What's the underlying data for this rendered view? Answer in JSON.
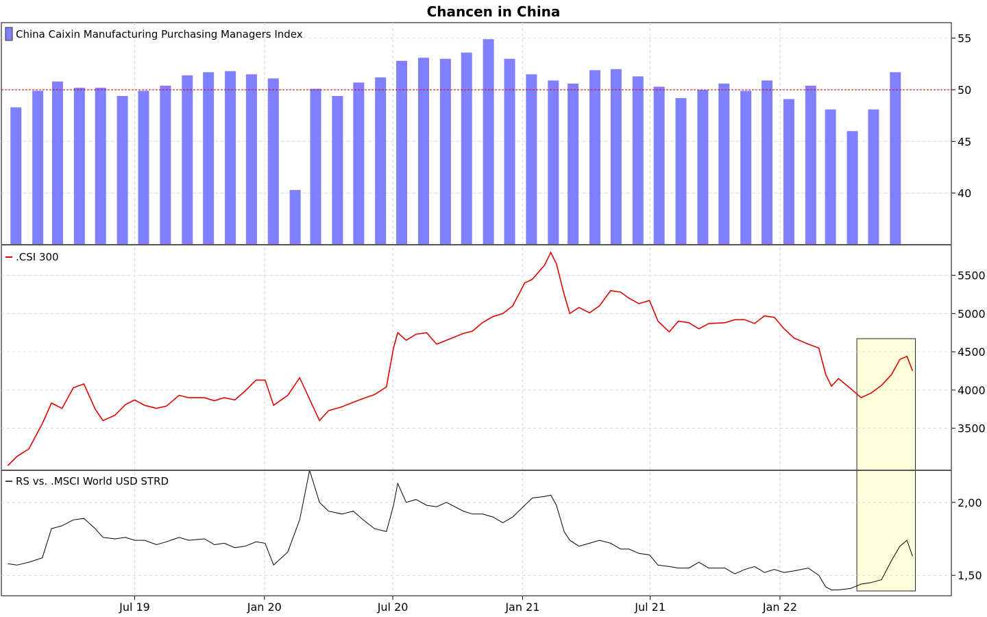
{
  "chart_data": [
    {
      "type": "bar",
      "title": "Chancen in China",
      "legend": "China Caixin Manufacturing Purchasing Managers Index",
      "color": "#8080ff",
      "reference_line": {
        "value": 50,
        "color": "#cc0000"
      },
      "ylim": [
        35,
        56.5
      ],
      "yticks": [
        40,
        45,
        50,
        55
      ],
      "x": [
        "2019-01",
        "2019-02",
        "2019-03",
        "2019-04",
        "2019-05",
        "2019-06",
        "2019-07",
        "2019-08",
        "2019-09",
        "2019-10",
        "2019-11",
        "2019-12",
        "2020-01",
        "2020-02",
        "2020-03",
        "2020-04",
        "2020-05",
        "2020-06",
        "2020-07",
        "2020-08",
        "2020-09",
        "2020-10",
        "2020-11",
        "2020-12",
        "2021-01",
        "2021-02",
        "2021-03",
        "2021-04",
        "2021-05",
        "2021-06",
        "2021-07",
        "2021-08",
        "2021-09",
        "2021-10",
        "2021-11",
        "2021-12",
        "2022-01",
        "2022-02",
        "2022-03",
        "2022-04",
        "2022-05",
        "2022-06"
      ],
      "values": [
        48.3,
        49.9,
        50.8,
        50.2,
        50.2,
        49.4,
        49.9,
        50.4,
        51.4,
        51.7,
        51.8,
        51.5,
        51.1,
        40.3,
        50.1,
        49.4,
        50.7,
        51.2,
        52.8,
        53.1,
        53.0,
        53.6,
        54.9,
        53.0,
        51.5,
        50.9,
        50.6,
        51.9,
        52.0,
        51.3,
        50.3,
        49.2,
        50.0,
        50.6,
        49.9,
        50.9,
        49.1,
        50.4,
        48.1,
        46.0,
        48.1,
        51.7
      ]
    },
    {
      "type": "line",
      "legend": ".CSI 300",
      "color": "#e00000",
      "ylim": [
        2950,
        5900
      ],
      "yticks": [
        3500,
        4000,
        4500,
        5000,
        5500
      ],
      "x": [
        "2019-01-02",
        "2019-01-15",
        "2019-02-01",
        "2019-02-20",
        "2019-03-05",
        "2019-03-20",
        "2019-04-05",
        "2019-04-20",
        "2019-05-06",
        "2019-05-17",
        "2019-06-03",
        "2019-06-18",
        "2019-07-01",
        "2019-07-15",
        "2019-08-01",
        "2019-08-15",
        "2019-09-02",
        "2019-09-16",
        "2019-10-08",
        "2019-10-22",
        "2019-11-05",
        "2019-11-20",
        "2019-12-05",
        "2019-12-20",
        "2020-01-02",
        "2020-01-14",
        "2020-02-03",
        "2020-02-20",
        "2020-03-05",
        "2020-03-19",
        "2020-04-01",
        "2020-04-20",
        "2020-05-06",
        "2020-05-20",
        "2020-06-05",
        "2020-06-22",
        "2020-07-02",
        "2020-07-08",
        "2020-07-20",
        "2020-08-03",
        "2020-08-18",
        "2020-09-01",
        "2020-09-15",
        "2020-10-09",
        "2020-10-22",
        "2020-11-05",
        "2020-11-20",
        "2020-12-04",
        "2020-12-18",
        "2021-01-04",
        "2021-01-15",
        "2021-02-01",
        "2021-02-10",
        "2021-02-18",
        "2021-03-01",
        "2021-03-09",
        "2021-03-22",
        "2021-04-06",
        "2021-04-20",
        "2021-05-06",
        "2021-05-20",
        "2021-06-01",
        "2021-06-15",
        "2021-06-30",
        "2021-07-12",
        "2021-07-28",
        "2021-08-10",
        "2021-08-25",
        "2021-09-08",
        "2021-09-22",
        "2021-10-15",
        "2021-10-29",
        "2021-11-12",
        "2021-11-26",
        "2021-12-10",
        "2021-12-24",
        "2022-01-07",
        "2022-01-21",
        "2022-02-10",
        "2022-02-25",
        "2022-03-07",
        "2022-03-15",
        "2022-03-25",
        "2022-04-11",
        "2022-04-26",
        "2022-05-10",
        "2022-05-25",
        "2022-06-08",
        "2022-06-20",
        "2022-06-30",
        "2022-07-08"
      ],
      "values": [
        3010,
        3130,
        3230,
        3560,
        3830,
        3760,
        4030,
        4080,
        3750,
        3600,
        3670,
        3810,
        3870,
        3800,
        3760,
        3790,
        3930,
        3900,
        3900,
        3860,
        3900,
        3870,
        3990,
        4130,
        4130,
        3800,
        3930,
        4160,
        3880,
        3600,
        3730,
        3780,
        3840,
        3890,
        3940,
        4040,
        4550,
        4750,
        4650,
        4730,
        4750,
        4600,
        4650,
        4740,
        4770,
        4880,
        4960,
        5000,
        5100,
        5400,
        5450,
        5630,
        5800,
        5650,
        5250,
        5000,
        5080,
        5010,
        5100,
        5300,
        5280,
        5200,
        5130,
        5170,
        4900,
        4760,
        4900,
        4880,
        4800,
        4870,
        4880,
        4920,
        4920,
        4870,
        4970,
        4950,
        4800,
        4680,
        4600,
        4550,
        4200,
        4050,
        4150,
        4020,
        3900,
        3960,
        4060,
        4200,
        4400,
        4440,
        4250
      ]
    },
    {
      "type": "line",
      "legend": "RS vs. .MSCI World USD STRD",
      "color": "#000000",
      "ylim": [
        1.36,
        2.22
      ],
      "yticks": [
        1.5,
        2.0
      ],
      "ytick_labels": [
        "1,50",
        "2,00"
      ],
      "x": [
        "2019-01-02",
        "2019-01-15",
        "2019-02-01",
        "2019-02-20",
        "2019-03-05",
        "2019-03-20",
        "2019-04-05",
        "2019-04-20",
        "2019-05-06",
        "2019-05-17",
        "2019-06-03",
        "2019-06-18",
        "2019-07-01",
        "2019-07-15",
        "2019-08-01",
        "2019-08-15",
        "2019-09-02",
        "2019-09-16",
        "2019-10-08",
        "2019-10-22",
        "2019-11-05",
        "2019-11-20",
        "2019-12-05",
        "2019-12-20",
        "2020-01-02",
        "2020-01-14",
        "2020-02-03",
        "2020-02-20",
        "2020-03-05",
        "2020-03-19",
        "2020-04-01",
        "2020-04-20",
        "2020-05-06",
        "2020-05-20",
        "2020-06-05",
        "2020-06-22",
        "2020-07-02",
        "2020-07-08",
        "2020-07-20",
        "2020-08-03",
        "2020-08-18",
        "2020-09-01",
        "2020-09-15",
        "2020-10-09",
        "2020-10-22",
        "2020-11-05",
        "2020-11-20",
        "2020-12-04",
        "2020-12-18",
        "2021-01-04",
        "2021-01-15",
        "2021-02-01",
        "2021-02-10",
        "2021-02-18",
        "2021-03-01",
        "2021-03-09",
        "2021-03-22",
        "2021-04-06",
        "2021-04-20",
        "2021-05-06",
        "2021-05-20",
        "2021-06-01",
        "2021-06-15",
        "2021-06-30",
        "2021-07-12",
        "2021-07-28",
        "2021-08-10",
        "2021-08-25",
        "2021-09-08",
        "2021-09-22",
        "2021-10-15",
        "2021-10-29",
        "2021-11-12",
        "2021-11-26",
        "2021-12-10",
        "2021-12-24",
        "2022-01-07",
        "2022-01-21",
        "2022-02-10",
        "2022-02-25",
        "2022-03-07",
        "2022-03-15",
        "2022-03-25",
        "2022-04-11",
        "2022-04-26",
        "2022-05-10",
        "2022-05-25",
        "2022-06-08",
        "2022-06-20",
        "2022-06-30",
        "2022-07-08"
      ],
      "values": [
        1.58,
        1.57,
        1.59,
        1.62,
        1.82,
        1.84,
        1.88,
        1.89,
        1.82,
        1.76,
        1.75,
        1.76,
        1.74,
        1.74,
        1.71,
        1.73,
        1.76,
        1.74,
        1.75,
        1.71,
        1.72,
        1.69,
        1.7,
        1.73,
        1.72,
        1.57,
        1.66,
        1.88,
        2.22,
        2.0,
        1.94,
        1.92,
        1.94,
        1.88,
        1.82,
        1.8,
        1.98,
        2.13,
        2.0,
        2.02,
        1.98,
        1.97,
        2.0,
        1.94,
        1.92,
        1.92,
        1.9,
        1.86,
        1.9,
        1.98,
        2.03,
        2.04,
        2.05,
        1.98,
        1.8,
        1.74,
        1.7,
        1.72,
        1.74,
        1.72,
        1.68,
        1.68,
        1.65,
        1.64,
        1.57,
        1.56,
        1.55,
        1.55,
        1.59,
        1.55,
        1.55,
        1.51,
        1.54,
        1.56,
        1.52,
        1.54,
        1.52,
        1.53,
        1.55,
        1.5,
        1.42,
        1.4,
        1.4,
        1.41,
        1.44,
        1.45,
        1.47,
        1.6,
        1.7,
        1.74,
        1.63
      ]
    }
  ],
  "x_axis": {
    "ticks": [
      "2019-07-01",
      "2020-01-01",
      "2020-07-01",
      "2021-01-01",
      "2021-07-01",
      "2022-01-01"
    ],
    "labels": [
      "Jul 19",
      "Jan 20",
      "Jul 20",
      "Jan 21",
      "Jul 21",
      "Jan 22"
    ],
    "range": [
      "2018-12-24",
      "2022-09-01"
    ]
  },
  "highlight": {
    "from": "2022-04-20",
    "to": "2022-07-12",
    "color": "#ffffdc"
  }
}
